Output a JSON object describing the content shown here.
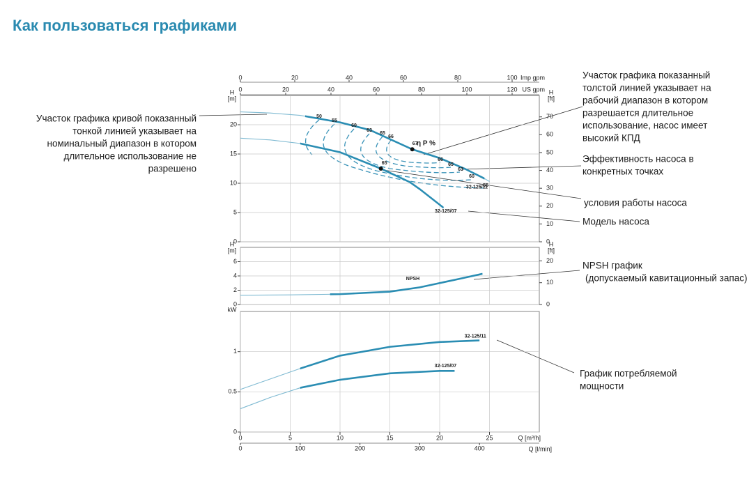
{
  "title": "Как пользоваться графиками",
  "annotations": [
    {
      "lines": [
        "Участок графика кривой показанный",
        "тонкой линией указывает на",
        "номинальный диапазон в котором",
        "длительное использование не",
        "разрешено"
      ]
    },
    {
      "lines": [
        "Участок графика показанный",
        "толстой линией указывает на",
        "рабочий диапазон в котором",
        "разрешается длительное",
        "использование, насос имеет",
        "высокий КПД"
      ]
    },
    {
      "lines": [
        "Эффективность насоса в",
        "конкретных точках"
      ]
    },
    {
      "lines": [
        "условия работы насоса"
      ]
    },
    {
      "lines": [
        "Модель насоса"
      ]
    },
    {
      "lines": [
        "NPSH график",
        "(допускаемый кавитационный запас)"
      ]
    },
    {
      "lines": [
        "График потребляемой",
        "мощности"
      ]
    }
  ],
  "chart_data": [
    {
      "type": "line",
      "ylabel": "H",
      "yunit": "[m]",
      "y2label": "H",
      "y2unit": "[ft]",
      "xlim": [
        0,
        30
      ],
      "xticks": [
        0,
        5,
        10,
        15,
        20,
        25
      ],
      "ylim": [
        0,
        25
      ],
      "yticks": [
        0,
        5,
        10,
        15,
        20
      ],
      "y2lim": [
        0,
        82
      ],
      "y2ticks": [
        0,
        10,
        20,
        30,
        40,
        50,
        60,
        70
      ],
      "top_axes": [
        {
          "label": "Imp gpm",
          "lim": [
            0,
            110
          ],
          "ticks": [
            0,
            20,
            40,
            60,
            80,
            100
          ]
        },
        {
          "label": "US gpm",
          "lim": [
            0,
            132
          ],
          "ticks": [
            0,
            20,
            40,
            60,
            80,
            100,
            120
          ]
        }
      ],
      "grid": true,
      "series": [
        {
          "name": "32-125/11",
          "color": "#2a8db3",
          "operating_range": [
            6.5,
            24.5
          ],
          "x": [
            0,
            3,
            6,
            10,
            13,
            17.25,
            20,
            22.5,
            24.5,
            25
          ],
          "values": [
            22.2,
            22.0,
            21.6,
            20.4,
            19.1,
            15.8,
            14.3,
            12.5,
            10.8,
            10.3
          ]
        },
        {
          "name": "32-125/07",
          "color": "#2a8db3",
          "operating_range": [
            6,
            20.4
          ],
          "x": [
            0,
            3,
            6,
            10,
            14.1,
            17,
            18,
            20.4
          ],
          "values": [
            17.7,
            17.4,
            16.8,
            15.3,
            12.5,
            10.2,
            9.0,
            5.8
          ]
        }
      ],
      "duty_points": [
        {
          "x": 17.25,
          "y": 15.8,
          "label": "67"
        },
        {
          "x": 14.1,
          "y": 12.5,
          "label": "65"
        }
      ],
      "efficiency_labels": [
        "50",
        "55",
        "60",
        "63",
        "65",
        "66",
        "66",
        "65",
        "63",
        "60",
        "55"
      ],
      "efficiency_unit": "η P %"
    },
    {
      "type": "line",
      "ylabel": "H",
      "yunit": "[m]",
      "y2label": "H",
      "y2unit": "[ft]",
      "xlim": [
        0,
        30
      ],
      "xticks": [
        0,
        5,
        10,
        15,
        20,
        25
      ],
      "ylim": [
        0,
        8
      ],
      "yticks": [
        0,
        2,
        4,
        6
      ],
      "y2lim": [
        0,
        26.2
      ],
      "y2ticks": [
        0,
        10,
        20
      ],
      "grid": true,
      "series": [
        {
          "name": "NPSH",
          "color": "#2a8db3",
          "operating_range": [
            9,
            24.3
          ],
          "x": [
            0,
            5,
            10,
            15,
            18,
            20,
            22,
            24.3
          ],
          "values": [
            1.3,
            1.35,
            1.45,
            1.8,
            2.4,
            3.0,
            3.6,
            4.3
          ]
        }
      ]
    },
    {
      "type": "line",
      "ylabel": "kW",
      "xlabel": "Q [m³/h]",
      "xlim": [
        0,
        30
      ],
      "xticks": [
        0,
        5,
        10,
        15,
        20,
        25
      ],
      "ylim": [
        0,
        1.5
      ],
      "yticks": [
        0,
        0.5,
        1
      ],
      "bottom_axis": {
        "label": "Q [l/min]",
        "lim": [
          0,
          500
        ],
        "ticks": [
          0,
          100,
          200,
          300,
          400
        ]
      },
      "grid": true,
      "series": [
        {
          "name": "32-125/11",
          "color": "#2a8db3",
          "operating_range": [
            6,
            24
          ],
          "x": [
            0,
            3,
            6,
            10,
            15,
            20,
            24
          ],
          "values": [
            0.53,
            0.66,
            0.79,
            0.95,
            1.06,
            1.12,
            1.14
          ]
        },
        {
          "name": "32-125/07",
          "color": "#2a8db3",
          "operating_range": [
            6,
            21.5
          ],
          "x": [
            0,
            3,
            6,
            10,
            15,
            20,
            21.5
          ],
          "values": [
            0.29,
            0.43,
            0.55,
            0.65,
            0.73,
            0.76,
            0.76
          ]
        }
      ]
    }
  ]
}
